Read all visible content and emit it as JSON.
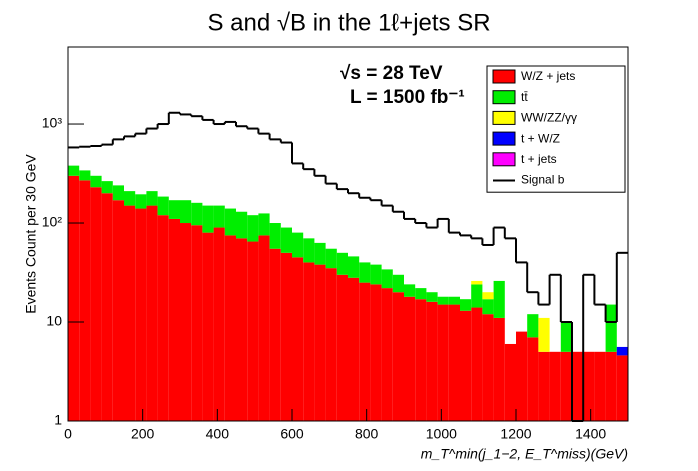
{
  "chart_data": {
    "type": "histogram",
    "title": "S and √B  in the 1ℓ+jets SR",
    "annotations": [
      "√s = 28 TeV",
      "L = 1500 fb⁻¹"
    ],
    "xlabel": "m_T^min(j_1−2, E_T^miss)(GeV)",
    "ylabel": "Events Count per 30 GeV",
    "log_y": true,
    "legend": "upper right",
    "xlim": [
      0,
      1500
    ],
    "ylim": [
      1,
      6000
    ],
    "xticks": [
      0,
      200,
      400,
      600,
      800,
      1000,
      1200,
      1400
    ],
    "yticks": [
      1,
      10,
      {
        "value": 100,
        "label": "10²"
      },
      {
        "value": 1000,
        "label": "10³"
      }
    ],
    "bins": [
      0,
      30,
      60,
      90,
      120,
      150,
      180,
      210,
      240,
      270,
      300,
      330,
      360,
      390,
      420,
      450,
      480,
      510,
      540,
      570,
      600,
      630,
      660,
      690,
      720,
      750,
      780,
      810,
      840,
      870,
      900,
      930,
      960,
      990,
      1020,
      1050,
      1080,
      1110,
      1140,
      1170,
      1200,
      1230,
      1260,
      1290,
      1320,
      1350,
      1380,
      1410,
      1440,
      1470,
      1500
    ],
    "series": [
      {
        "name": "W/Z + jets",
        "color": "#ff0000",
        "values": [
          300,
          270,
          230,
          200,
          170,
          150,
          140,
          150,
          120,
          110,
          100,
          95,
          80,
          90,
          75,
          70,
          65,
          75,
          55,
          50,
          45,
          40,
          38,
          35,
          30,
          28,
          25,
          24,
          22,
          20,
          18,
          17,
          16,
          15,
          15,
          13,
          14,
          12,
          11,
          6,
          8,
          7,
          5,
          5,
          5,
          5,
          5,
          5,
          5,
          4.6
        ]
      },
      {
        "name": "tt̄",
        "color": "#00ee00",
        "values": [
          80,
          70,
          70,
          65,
          70,
          60,
          55,
          60,
          65,
          60,
          70,
          65,
          70,
          60,
          65,
          60,
          55,
          50,
          45,
          40,
          35,
          30,
          25,
          20,
          20,
          18,
          15,
          14,
          12,
          10,
          6,
          5,
          4,
          3,
          3,
          4,
          10,
          5,
          15,
          0,
          0,
          5,
          0,
          0,
          5,
          0,
          0,
          0,
          10,
          0
        ]
      },
      {
        "name": "WW/ZZ/γγ",
        "color": "#ffff00",
        "values": [
          0,
          0,
          0,
          0,
          0,
          0,
          0,
          0,
          0,
          0,
          0,
          0,
          0,
          0,
          0,
          0,
          0,
          0,
          0,
          0,
          0,
          0,
          0,
          0,
          0,
          0,
          0,
          0,
          0,
          0,
          0,
          0,
          0,
          0,
          0,
          0,
          2,
          3,
          0,
          0,
          0,
          0,
          6,
          0,
          0,
          0,
          0,
          0,
          0,
          0
        ]
      },
      {
        "name": "t + W/Z",
        "color": "#0000ff",
        "values": [
          0,
          0,
          0,
          0,
          0,
          0,
          0,
          0,
          0,
          0,
          0,
          0,
          0,
          0,
          0,
          0,
          0,
          0,
          0,
          0,
          0,
          0,
          0,
          0,
          0,
          0,
          0,
          0,
          0,
          0,
          0,
          0,
          0,
          0,
          0,
          0,
          0,
          0,
          0,
          0,
          0,
          0,
          0,
          0,
          0,
          0,
          0,
          0,
          0,
          1
        ]
      },
      {
        "name": "t + jets",
        "color": "#ff00ff",
        "values": [
          0,
          0,
          0,
          0,
          0,
          0,
          0,
          0,
          0,
          0,
          0,
          0,
          0,
          0,
          0,
          0,
          0,
          0,
          0,
          0,
          0,
          0,
          0,
          0,
          0,
          0,
          0,
          0,
          0,
          0,
          0,
          0,
          0,
          0,
          0,
          0,
          0,
          0,
          0,
          0,
          0,
          0,
          0,
          0,
          0,
          0,
          0,
          0,
          0,
          0
        ]
      }
    ],
    "signal": {
      "name": "Signal b",
      "color": "#000000",
      "values": [
        580,
        590,
        600,
        620,
        700,
        750,
        800,
        900,
        1000,
        1300,
        1250,
        1200,
        1100,
        1000,
        1050,
        950,
        900,
        800,
        700,
        650,
        400,
        350,
        300,
        250,
        220,
        200,
        180,
        170,
        150,
        130,
        110,
        100,
        90,
        110,
        80,
        75,
        70,
        60,
        90,
        70,
        40,
        20,
        15,
        30,
        10,
        1,
        30,
        15,
        10,
        50
      ]
    }
  }
}
